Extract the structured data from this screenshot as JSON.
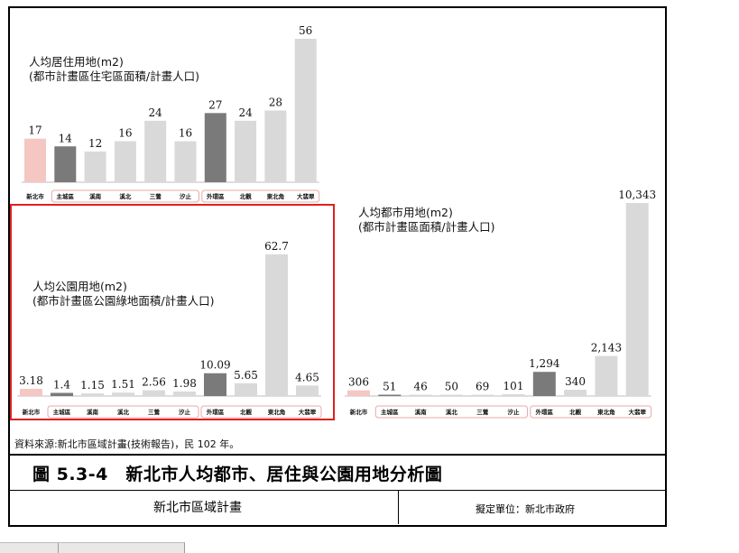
{
  "chart_data": [
    {
      "type": "bar",
      "title_line1": "人均居住用地(m2)",
      "title_line2": "(都市計畫區住宅區面積/計畫人口)",
      "categories": [
        "新北市",
        "主城區",
        "溪南",
        "溪北",
        "三鶯",
        "汐止",
        "外環區",
        "北觀",
        "東北角",
        "大翡翠"
      ],
      "values": [
        17,
        14,
        12,
        16,
        24,
        16,
        27,
        24,
        28,
        56
      ],
      "value_labels": [
        "17",
        "14",
        "12",
        "16",
        "24",
        "16",
        "27",
        "24",
        "28",
        "56"
      ],
      "group_labels": [
        "主城區",
        "外環區"
      ],
      "ylim": [
        0,
        56
      ]
    },
    {
      "type": "bar",
      "title_line1": "人均公園用地(m2)",
      "title_line2": "(都市計畫區公園綠地面積/計畫人口)",
      "categories": [
        "新北市",
        "主城區",
        "溪南",
        "溪北",
        "三鶯",
        "汐止",
        "外環區",
        "北觀",
        "東北角",
        "大翡翠"
      ],
      "values": [
        3.18,
        1.4,
        1.15,
        1.51,
        2.56,
        1.98,
        10.09,
        5.65,
        62.7,
        4.65
      ],
      "value_labels": [
        "3.18",
        "1.4",
        "1.15",
        "1.51",
        "2.56",
        "1.98",
        "10.09",
        "5.65",
        "62.7",
        "4.65"
      ],
      "group_labels": [
        "主城區",
        "外環區"
      ],
      "ylim": [
        0,
        62.7
      ]
    },
    {
      "type": "bar",
      "title_line1": "人均都市用地(m2)",
      "title_line2": "(都市計畫區面積/計畫人口)",
      "categories": [
        "新北市",
        "主城區",
        "溪南",
        "溪北",
        "三鶯",
        "汐止",
        "外環區",
        "北觀",
        "東北角",
        "大翡翠"
      ],
      "values": [
        306,
        51,
        46,
        50,
        69,
        101,
        1294,
        340,
        2143,
        10343
      ],
      "value_labels": [
        "306",
        "51",
        "46",
        "50",
        "69",
        "101",
        "1,294",
        "340",
        "2,143",
        "10,343"
      ],
      "group_labels": [
        "主城區",
        "外環區"
      ],
      "ylim": [
        0,
        10343
      ]
    }
  ],
  "colors": {
    "city": "#f4c7c2",
    "region": "#7a7a7a",
    "district": "#d9d9d9",
    "highlight": "#e02020"
  },
  "source": "資料來源:新北市區域計畫(技術報告)，民 102 年。",
  "figure_title": "圖 5.3-4　新北市人均都市、居住與公園用地分析圖",
  "plan_name": "新北市區域計畫",
  "unit": "擬定單位：新北市政府"
}
